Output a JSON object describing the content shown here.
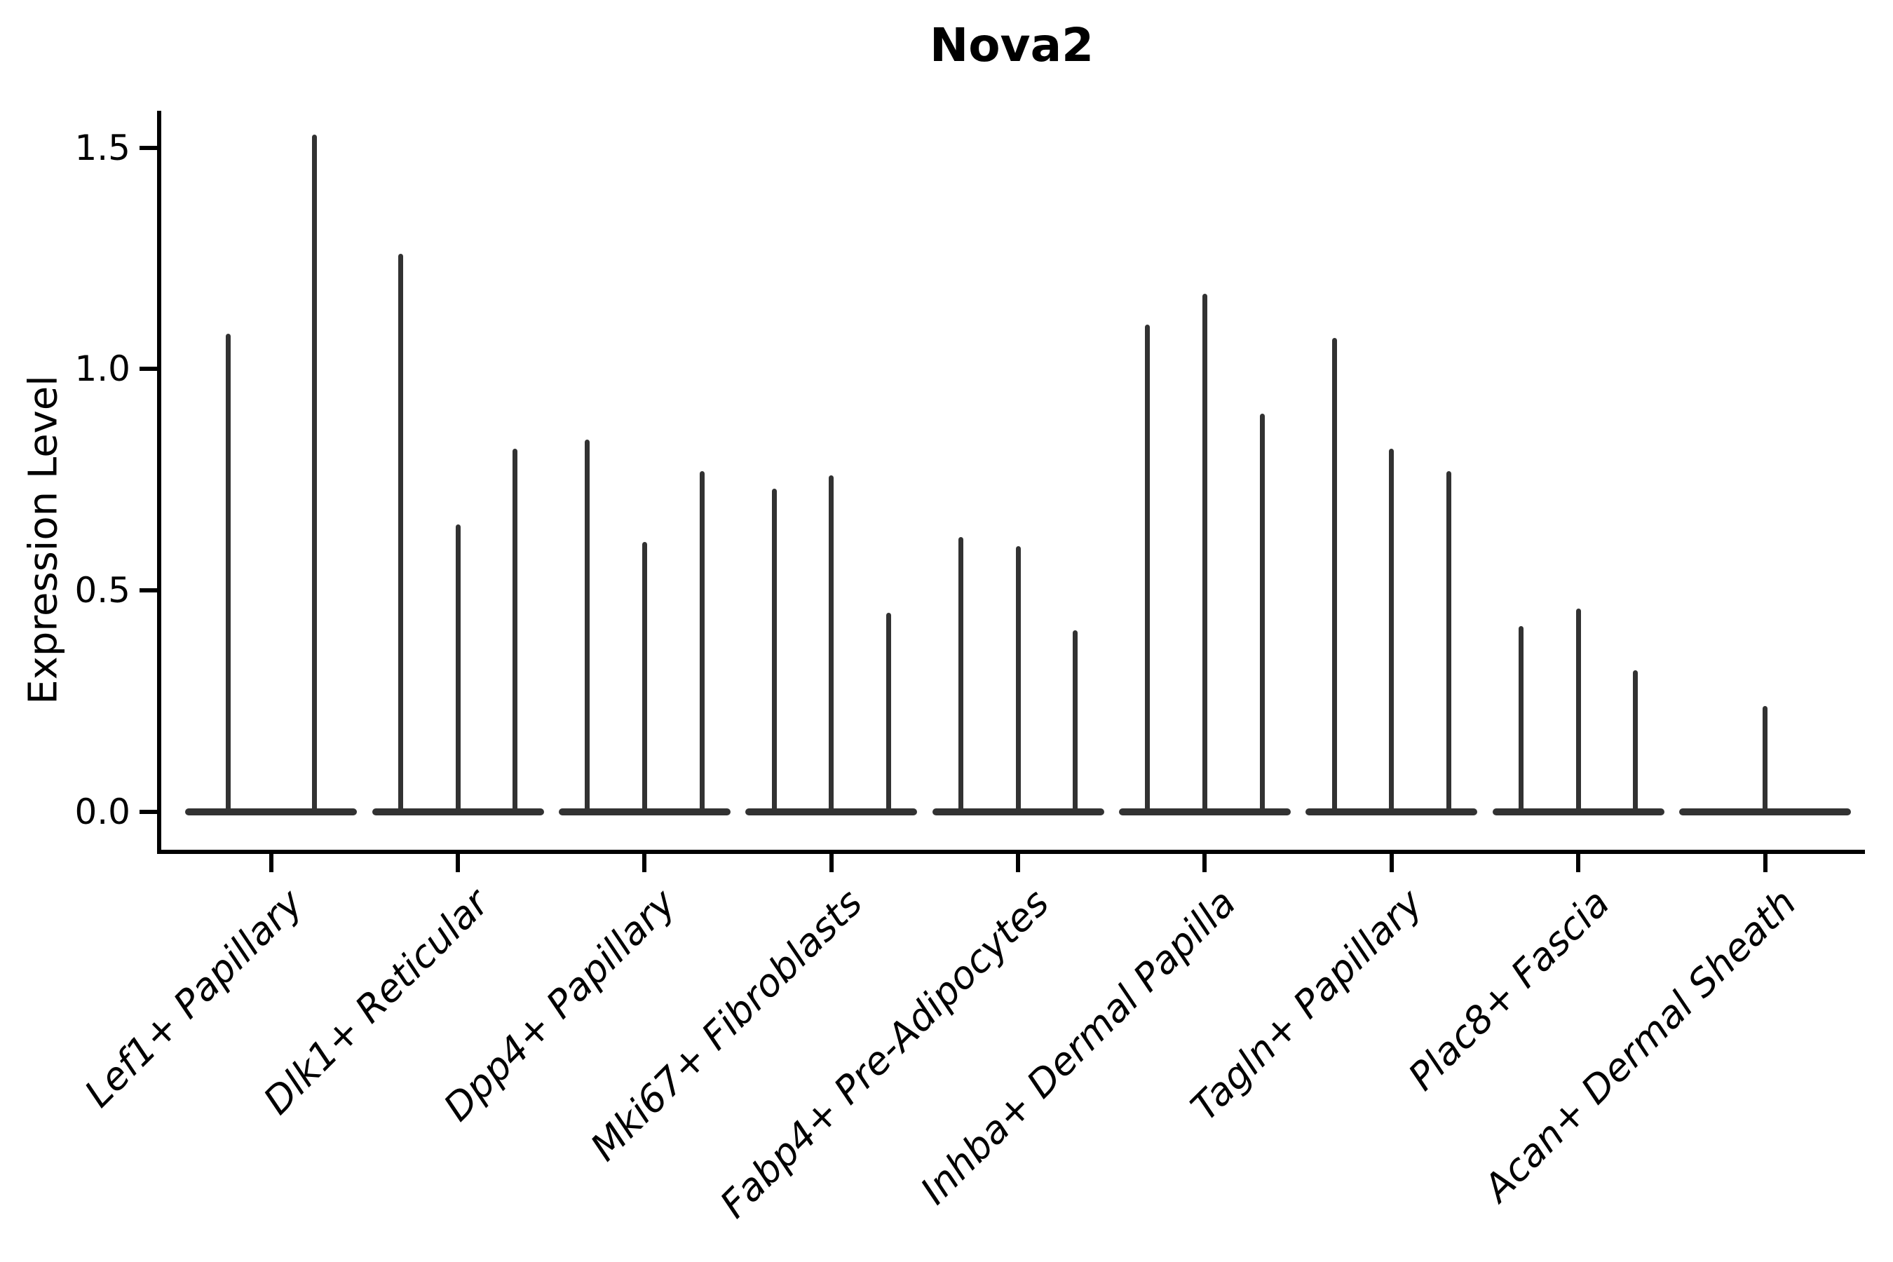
{
  "chart_data": {
    "type": "violin",
    "title": "Nova2",
    "xlabel": "",
    "ylabel": "Expression Level",
    "categories": [
      "Lef1+ Papillary",
      "Dlk1+ Reticular",
      "Dpp4+ Papillary",
      "Mki67+ Fibroblasts",
      "Fabp4+ Pre-Adipocytes",
      "Inhba+ Dermal Papilla",
      "Tagln+ Papillary",
      "Plac8+ Fascia",
      "Acan+ Dermal Sheath"
    ],
    "violins": [
      [
        1.08,
        1.53
      ],
      [
        1.26,
        0.65,
        0.82
      ],
      [
        0.84,
        0.61,
        0.77
      ],
      [
        0.73,
        0.76,
        0.45
      ],
      [
        0.62,
        0.6,
        0.41
      ],
      [
        1.1,
        1.17,
        0.9
      ],
      [
        1.07,
        0.82,
        0.77
      ],
      [
        0.42,
        0.46,
        0.32
      ],
      [
        0.24
      ]
    ],
    "violin_description": "Each group shows narrow zero-width violins collapsed at 0 with a thin spike up to the listed max expression value; baseline bulge at y=0 spans the full group width.",
    "yticks": [
      0.0,
      0.5,
      1.0,
      1.5
    ],
    "ytick_labels": [
      "0.0",
      "0.5",
      "1.0",
      "1.5"
    ],
    "ylim": [
      -0.09,
      1.58
    ],
    "xlim": [
      -0.6,
      8.535
    ],
    "group_total_width": 0.92,
    "xtick_rotation_deg": 45,
    "grid": false,
    "legend": "none",
    "colors": {
      "violin": "#323232",
      "axis": "#000000",
      "text": "#000000",
      "background": "#ffffff"
    }
  }
}
